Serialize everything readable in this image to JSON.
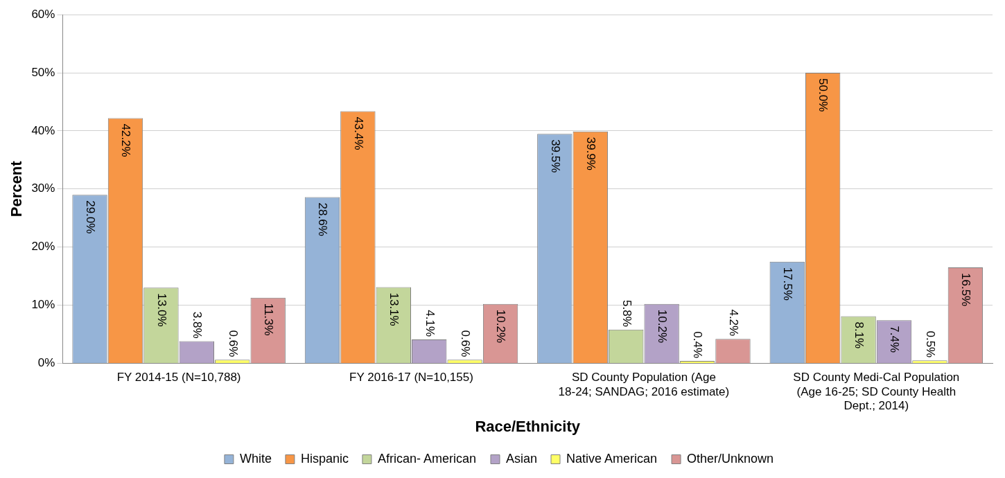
{
  "chart_data": {
    "type": "bar",
    "xlabel": "Race/Ethnicity",
    "ylabel": "Percent",
    "categories": [
      "FY 2014-15 (N=10,788)",
      "FY 2016-17 (N=10,155)",
      "SD County Population (Age 18-24; SANDAG; 2016 estimate)",
      "SD County Medi-Cal Population (Age 16-25; SD County Health Dept.; 2014)"
    ],
    "series": [
      {
        "name": "White",
        "color": "#95b3d7",
        "values": [
          29.0,
          28.6,
          39.5,
          17.5
        ],
        "value_labels": [
          "29.0%",
          "28.6%",
          "39.5%",
          "17.5%"
        ]
      },
      {
        "name": "Hispanic",
        "color": "#f79646",
        "values": [
          42.2,
          43.4,
          39.9,
          50.0
        ],
        "value_labels": [
          "42.2%",
          "43.4%",
          "39.9%",
          "50.0%"
        ]
      },
      {
        "name": "African- American",
        "color": "#c3d69b",
        "values": [
          13.0,
          13.1,
          5.8,
          8.1
        ],
        "value_labels": [
          "13.0%",
          "13.1%",
          "5.8%",
          "8.1%"
        ]
      },
      {
        "name": "Asian",
        "color": "#b3a2c7",
        "values": [
          3.8,
          4.1,
          10.2,
          7.4
        ],
        "value_labels": [
          "3.8%",
          "4.1%",
          "10.2%",
          "7.4%"
        ]
      },
      {
        "name": "Native American",
        "color": "#ffff66",
        "values": [
          0.6,
          0.6,
          0.4,
          0.5
        ],
        "value_labels": [
          "0.6%",
          "0.6%",
          "0.4%",
          "0.5%"
        ]
      },
      {
        "name": "Other/Unknown",
        "color": "#d99694",
        "values": [
          11.3,
          10.2,
          4.2,
          16.5
        ],
        "value_labels": [
          "11.3%",
          "10.2%",
          "4.2%",
          "16.5%"
        ]
      }
    ],
    "ylim": [
      0,
      60
    ],
    "yticks": [
      {
        "value": 0,
        "label": "0%"
      },
      {
        "value": 10,
        "label": "10%"
      },
      {
        "value": 20,
        "label": "20%"
      },
      {
        "value": 30,
        "label": "30%"
      },
      {
        "value": 40,
        "label": "40%"
      },
      {
        "value": 50,
        "label": "50%"
      },
      {
        "value": 60,
        "label": "60%"
      }
    ],
    "grid": "y",
    "legend": "bottom"
  }
}
